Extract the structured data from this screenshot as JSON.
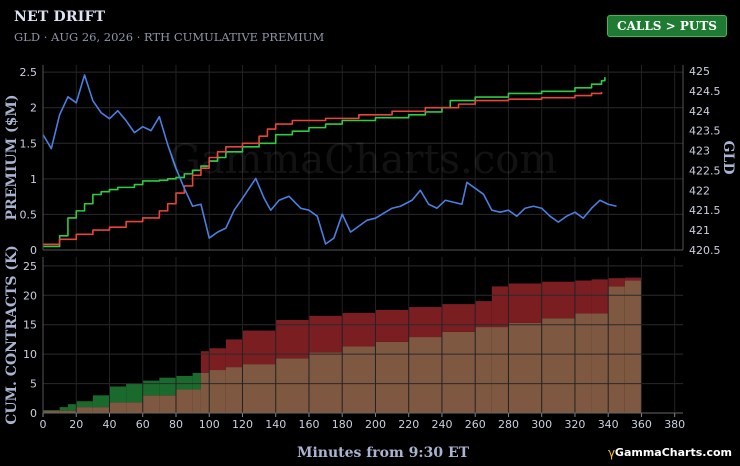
{
  "header": {
    "title": "NET DRIFT",
    "subtitle": "GLD · AUG 26, 2026 · RTH CUMULATIVE PREMIUM",
    "badge": "CALLS > PUTS"
  },
  "watermark": "GammaCharts.com",
  "brand": "GammaCharts.com",
  "colors": {
    "calls_line": "#2ecc40",
    "puts_line": "#e8443a",
    "price_line": "#4a7fe0",
    "calls_fill": "#1a6a2e",
    "puts_fill": "#7a1e22",
    "base_fill": "#7e5840",
    "badge": "#1f7a32"
  },
  "chart_data": [
    {
      "type": "line",
      "panel": "premium",
      "xlim": [
        0,
        385
      ],
      "ylabel": "PREMIUM ($M)",
      "ylim": [
        0,
        2.6
      ],
      "y_ticks": [
        "0",
        "0.5",
        "1",
        "1.5",
        "2",
        "2.5"
      ],
      "y2label": "GLD",
      "y2lim": [
        420.5,
        425.15
      ],
      "y2_ticks": [
        "420.5",
        "421",
        "421.5",
        "422",
        "422.5",
        "423",
        "423.5",
        "424",
        "424.5",
        "425"
      ],
      "grid": true,
      "series": [
        {
          "name": "CALLS",
          "axis": "left",
          "color": "#2ecc40",
          "step": true,
          "x": [
            0,
            10,
            15,
            20,
            25,
            30,
            35,
            40,
            45,
            55,
            60,
            70,
            75,
            80,
            85,
            90,
            95,
            100,
            105,
            110,
            120,
            130,
            140,
            150,
            160,
            170,
            180,
            200,
            220,
            230,
            240,
            245,
            260,
            280,
            300,
            320,
            330,
            336,
            338
          ],
          "y": [
            0.05,
            0.2,
            0.45,
            0.55,
            0.65,
            0.78,
            0.82,
            0.85,
            0.88,
            0.92,
            0.97,
            0.98,
            1.0,
            1.02,
            1.07,
            1.12,
            1.18,
            1.25,
            1.3,
            1.38,
            1.45,
            1.5,
            1.62,
            1.67,
            1.72,
            1.77,
            1.82,
            1.86,
            1.9,
            1.94,
            2.0,
            2.1,
            2.15,
            2.2,
            2.23,
            2.28,
            2.33,
            2.38,
            2.43
          ]
        },
        {
          "name": "PUTS",
          "axis": "left",
          "color": "#e8443a",
          "step": true,
          "x": [
            0,
            10,
            20,
            30,
            40,
            50,
            60,
            70,
            75,
            80,
            85,
            90,
            95,
            100,
            105,
            110,
            120,
            130,
            135,
            140,
            150,
            170,
            190,
            210,
            230,
            250,
            260,
            280,
            300,
            320,
            330,
            336
          ],
          "y": [
            0.08,
            0.15,
            0.22,
            0.28,
            0.32,
            0.4,
            0.45,
            0.55,
            0.65,
            0.8,
            0.9,
            1.05,
            1.15,
            1.3,
            1.38,
            1.45,
            1.5,
            1.6,
            1.7,
            1.77,
            1.82,
            1.85,
            1.9,
            1.95,
            2.0,
            2.05,
            2.1,
            2.12,
            2.14,
            2.17,
            2.2,
            2.22
          ]
        },
        {
          "name": "GLD",
          "axis": "right",
          "color": "#4a7fe0",
          "step": false,
          "x": [
            0,
            5,
            10,
            15,
            20,
            25,
            30,
            35,
            40,
            45,
            50,
            55,
            60,
            65,
            70,
            75,
            80,
            85,
            90,
            95,
            100,
            105,
            110,
            115,
            120,
            128,
            133,
            137,
            142,
            148,
            155,
            160,
            165,
            170,
            175,
            180,
            185,
            190,
            195,
            200,
            210,
            215,
            222,
            227,
            232,
            237,
            242,
            247,
            252,
            255,
            260,
            265,
            270,
            275,
            280,
            285,
            290,
            295,
            300,
            305,
            310,
            315,
            320,
            325,
            330,
            335,
            340,
            345
          ],
          "y": [
            423.4,
            423.05,
            423.9,
            424.35,
            424.2,
            424.9,
            424.25,
            423.95,
            423.8,
            424.0,
            423.75,
            423.45,
            423.6,
            423.5,
            423.85,
            423.15,
            422.55,
            422.05,
            421.6,
            421.65,
            420.8,
            420.95,
            421.05,
            421.5,
            421.8,
            422.3,
            421.8,
            421.5,
            421.75,
            421.85,
            421.55,
            421.5,
            421.35,
            420.65,
            420.8,
            421.4,
            420.95,
            421.1,
            421.25,
            421.3,
            421.55,
            421.6,
            421.75,
            422.0,
            421.65,
            421.55,
            421.75,
            421.7,
            421.65,
            422.2,
            422.05,
            421.9,
            421.5,
            421.45,
            421.5,
            421.35,
            421.55,
            421.6,
            421.55,
            421.35,
            421.2,
            421.35,
            421.45,
            421.3,
            421.55,
            421.75,
            421.65,
            421.6
          ]
        }
      ]
    },
    {
      "type": "area",
      "panel": "contracts",
      "xlabel": "Minutes from 9:30 ET",
      "xlim": [
        0,
        385
      ],
      "x_ticks": [
        "0",
        "20",
        "40",
        "60",
        "80",
        "100",
        "120",
        "140",
        "160",
        "180",
        "200",
        "220",
        "240",
        "260",
        "280",
        "300",
        "320",
        "340",
        "360",
        "380"
      ],
      "ylabel": "CUM. CONTRACTS (K)",
      "ylim": [
        0,
        26.5
      ],
      "y_ticks": [
        "0",
        "5",
        "10",
        "15",
        "20",
        "25"
      ],
      "grid": true,
      "series": [
        {
          "name": "CALLS",
          "color": "#1a6a2e",
          "step": true,
          "x": [
            0,
            10,
            15,
            20,
            30,
            40,
            50,
            60,
            70,
            80,
            90,
            100,
            110,
            120,
            140,
            160,
            180,
            200,
            220,
            240,
            260,
            280,
            300,
            320,
            340,
            350,
            360
          ],
          "y": [
            0.5,
            1.0,
            1.5,
            2.0,
            3.0,
            4.5,
            5.0,
            5.5,
            6.0,
            6.3,
            6.8,
            7.3,
            7.8,
            8.3,
            9.3,
            10.3,
            11.3,
            12.1,
            12.9,
            13.8,
            14.6,
            15.3,
            16.1,
            16.9,
            21.5,
            22.5,
            23.7
          ]
        },
        {
          "name": "PUTS",
          "color": "#7a1e22",
          "step": true,
          "x": [
            0,
            20,
            40,
            60,
            80,
            95,
            100,
            110,
            120,
            140,
            160,
            180,
            200,
            220,
            240,
            260,
            270,
            280,
            300,
            320,
            330,
            340,
            350,
            360
          ],
          "y": [
            0.4,
            1.0,
            1.8,
            3.0,
            4.0,
            10.5,
            11.0,
            12.5,
            14.0,
            15.8,
            16.5,
            17.0,
            17.5,
            18.0,
            18.5,
            19.0,
            21.5,
            22.0,
            22.3,
            22.5,
            22.7,
            22.9,
            23.0,
            23.2
          ]
        }
      ]
    }
  ]
}
